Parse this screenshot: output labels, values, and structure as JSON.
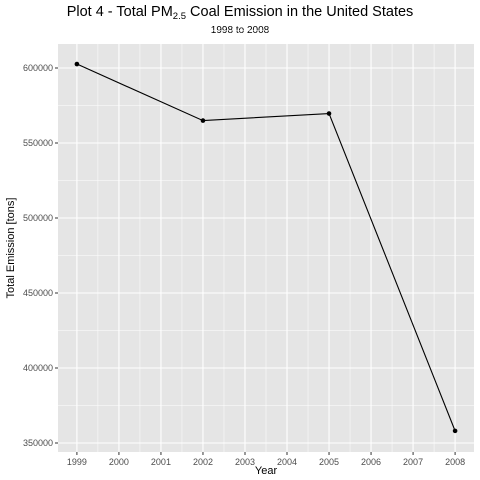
{
  "header": {
    "title_prefix": "Plot 4 - Total PM",
    "title_sub": "2.5",
    "title_suffix": " Coal Emission in the United States",
    "subtitle": "1998 to 2008"
  },
  "chart_data": {
    "type": "line",
    "title": "Plot 4 - Total PM2.5 Coal Emission in the United States",
    "subtitle": "1998 to 2008",
    "xlabel": "Year",
    "ylabel": "Total Emission [tons]",
    "x": [
      1999,
      2002,
      2005,
      2008
    ],
    "y": [
      602625,
      564940,
      569655,
      358084
    ],
    "xticks": [
      "1999",
      "2000",
      "2001",
      "2002",
      "2003",
      "2004",
      "2005",
      "2006",
      "2007",
      "2008"
    ],
    "yticks": [
      "350000",
      "400000",
      "450000",
      "500000",
      "550000",
      "600000"
    ],
    "xlim": [
      1998.55,
      2008.45
    ],
    "ylim": [
      344000,
      616000
    ],
    "grid": true,
    "panel_background": "#e5e5e5",
    "grid_color": "#ffffff",
    "line_color": "#000000"
  }
}
